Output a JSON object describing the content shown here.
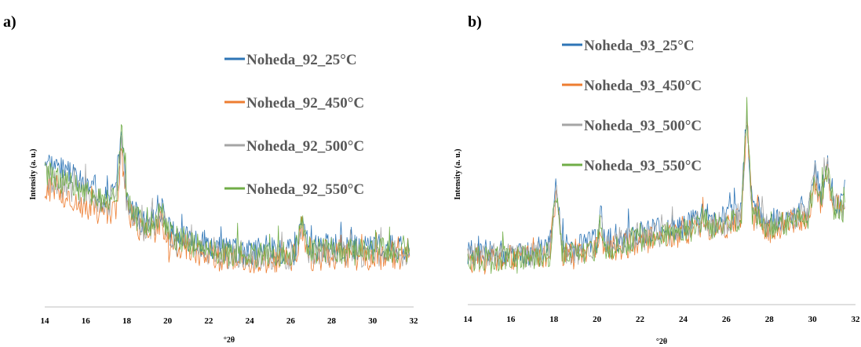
{
  "chart_data": [
    {
      "type": "line",
      "panel_label": "a)",
      "xlabel": "°2θ",
      "ylabel": "Intensity (a. u.)",
      "xlim": [
        14,
        32
      ],
      "ylim": [
        0,
        100
      ],
      "x_ticks": [
        "14",
        "16",
        "18",
        "20",
        "22",
        "24",
        "26",
        "28",
        "30",
        "32"
      ],
      "grid": false,
      "legend_position": "top-right",
      "series": [
        {
          "name": "Noheda_92_25°C",
          "color": "#2e75b6",
          "x": [
            14,
            15,
            16,
            17,
            17.5,
            17.75,
            18,
            18.5,
            19,
            19.5,
            19.75,
            20,
            21,
            22,
            23,
            24,
            25,
            26,
            26.3,
            26.55,
            26.8,
            27,
            28,
            29,
            30,
            31,
            31.8
          ],
          "y": [
            75,
            68,
            61,
            56,
            58,
            90,
            56,
            45,
            41,
            46,
            48,
            38,
            33,
            29,
            27,
            26,
            26,
            27,
            31,
            44,
            31,
            28,
            29,
            28,
            28,
            29,
            28
          ]
        },
        {
          "name": "Noheda_92_450°C",
          "color": "#ed7d31",
          "x": [
            14,
            15,
            16,
            17,
            17.5,
            17.75,
            18,
            18.5,
            19,
            19.5,
            19.75,
            20,
            21,
            22,
            23,
            24,
            25,
            26,
            26.3,
            26.55,
            26.8,
            27,
            28,
            29,
            30,
            31,
            31.8
          ],
          "y": [
            60,
            54,
            49,
            46,
            49,
            80,
            48,
            38,
            34,
            39,
            42,
            32,
            28,
            24,
            22,
            21,
            21,
            22,
            26,
            40,
            26,
            23,
            24,
            23,
            23,
            24,
            23
          ]
        },
        {
          "name": "Noheda_92_500°C",
          "color": "#a5a5a5",
          "x": [
            14,
            15,
            16,
            17,
            17.5,
            17.75,
            18,
            18.5,
            19,
            19.5,
            19.75,
            20,
            21,
            22,
            23,
            24,
            25,
            26,
            26.3,
            26.55,
            26.8,
            27,
            28,
            29,
            30,
            31,
            31.8
          ],
          "y": [
            66,
            60,
            55,
            51,
            54,
            84,
            52,
            41,
            37,
            42,
            45,
            35,
            30,
            26,
            24,
            23,
            23,
            24,
            28,
            41,
            28,
            25,
            26,
            25,
            25,
            26,
            25
          ]
        },
        {
          "name": "Noheda_92_550°C",
          "color": "#70ad47",
          "x": [
            14,
            15,
            16,
            17,
            17.5,
            17.75,
            18,
            18.5,
            19,
            19.5,
            19.75,
            20,
            21,
            22,
            23,
            24,
            25,
            26,
            26.3,
            26.55,
            26.8,
            27,
            28,
            29,
            30,
            31,
            31.8
          ],
          "y": [
            68,
            62,
            57,
            53,
            56,
            92,
            54,
            43,
            39,
            44,
            47,
            36,
            31,
            27,
            25,
            24,
            24,
            25,
            29,
            42,
            29,
            26,
            27,
            26,
            26,
            27,
            26
          ]
        }
      ]
    },
    {
      "type": "line",
      "panel_label": "b)",
      "xlabel": "°2θ",
      "ylabel": "Intensity (a. u.)",
      "xlim": [
        14,
        32
      ],
      "ylim": [
        0,
        100
      ],
      "x_ticks": [
        "14",
        "16",
        "18",
        "20",
        "22",
        "24",
        "26",
        "28",
        "30",
        "32"
      ],
      "grid": false,
      "legend_position": "top-left",
      "series": [
        {
          "name": "Noheda_93_25°C",
          "color": "#2e75b6",
          "x": [
            14,
            16,
            17.8,
            18,
            18.15,
            18.35,
            19,
            20,
            20.15,
            20.35,
            21,
            22,
            23,
            24,
            24.8,
            24.95,
            25.2,
            26,
            26.7,
            26.95,
            27.2,
            28,
            29,
            29.8,
            30.1,
            30.4,
            30.65,
            31,
            31.5
          ],
          "y": [
            24,
            24,
            26,
            50,
            60,
            28,
            26,
            30,
            44,
            30,
            31,
            34,
            36,
            38,
            42,
            46,
            40,
            42,
            46,
            98,
            47,
            40,
            44,
            46,
            68,
            55,
            72,
            52,
            48
          ]
        },
        {
          "name": "Noheda_93_450°C",
          "color": "#ed7d31",
          "x": [
            14,
            16,
            17.8,
            18,
            18.15,
            18.35,
            19,
            20,
            20.15,
            20.35,
            21,
            22,
            23,
            24,
            24.8,
            24.95,
            25.2,
            26,
            26.7,
            26.95,
            27.2,
            28,
            29,
            29.8,
            30.1,
            30.4,
            30.65,
            31,
            31.5
          ],
          "y": [
            20,
            21,
            23,
            46,
            56,
            24,
            22,
            26,
            40,
            26,
            27,
            30,
            32,
            34,
            38,
            43,
            36,
            38,
            42,
            94,
            43,
            36,
            40,
            42,
            62,
            50,
            66,
            47,
            44
          ]
        },
        {
          "name": "Noheda_93_500°C",
          "color": "#a5a5a5",
          "x": [
            14,
            16,
            17.8,
            18,
            18.15,
            18.35,
            19,
            20,
            20.15,
            20.35,
            21,
            22,
            23,
            24,
            24.8,
            24.95,
            25.2,
            26,
            26.7,
            26.95,
            27.2,
            28,
            29,
            29.8,
            30.1,
            30.4,
            30.65,
            31,
            31.5
          ],
          "y": [
            22,
            22,
            24,
            48,
            57,
            26,
            24,
            28,
            42,
            28,
            29,
            32,
            34,
            36,
            40,
            44,
            38,
            40,
            44,
            96,
            45,
            38,
            42,
            44,
            65,
            52,
            69,
            49,
            46
          ]
        },
        {
          "name": "Noheda_93_550°C",
          "color": "#70ad47",
          "x": [
            14,
            16,
            17.8,
            18,
            18.15,
            18.35,
            19,
            20,
            20.15,
            20.35,
            21,
            22,
            23,
            24,
            24.8,
            24.95,
            25.2,
            26,
            26.7,
            26.95,
            27.2,
            28,
            29,
            29.8,
            30.1,
            30.4,
            30.65,
            31,
            31.5
          ],
          "y": [
            21,
            21,
            23,
            47,
            58,
            25,
            23,
            27,
            41,
            27,
            28,
            31,
            33,
            35,
            39,
            44,
            37,
            39,
            43,
            100,
            44,
            37,
            41,
            43,
            64,
            51,
            68,
            48,
            45
          ]
        }
      ]
    }
  ]
}
